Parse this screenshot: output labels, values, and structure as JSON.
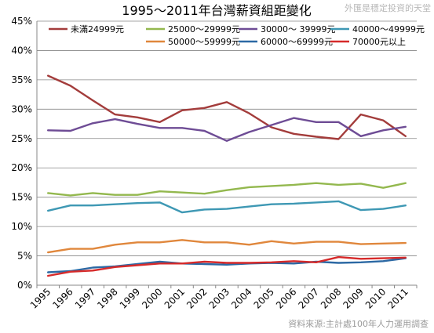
{
  "header": {
    "title": "1995～2011年台灣薪資組距變化",
    "watermark": "外匯是穩定投資的天堂"
  },
  "footer": {
    "source": "資料來源:主計處100年人力運用調查"
  },
  "chart_data": {
    "type": "line",
    "x": [
      "1995",
      "1996",
      "1997",
      "1998",
      "1999",
      "2000",
      "2001",
      "2002",
      "2003",
      "2004",
      "2005",
      "2006",
      "2007",
      "2008",
      "2009",
      "2010",
      "2011"
    ],
    "ylim": [
      0,
      45
    ],
    "yticks": [
      0,
      5,
      10,
      15,
      20,
      25,
      30,
      35,
      40,
      45
    ],
    "ytick_labels": [
      "0%",
      "5%",
      "10%",
      "15%",
      "20%",
      "25%",
      "30%",
      "35%",
      "40%",
      "45%"
    ],
    "grid": true,
    "legend_position": "top",
    "series": [
      {
        "name": "未滿24999元",
        "color": "#a33c3b",
        "values": [
          35.7,
          34.0,
          31.5,
          29.1,
          28.6,
          27.8,
          29.8,
          30.2,
          31.2,
          29.3,
          26.9,
          25.8,
          25.3,
          24.9,
          29.1,
          28.1,
          25.4
        ]
      },
      {
        "name": "25000～29999元",
        "color": "#93b84e",
        "values": [
          15.7,
          15.3,
          15.7,
          15.4,
          15.4,
          16.0,
          15.8,
          15.6,
          16.2,
          16.7,
          16.9,
          17.1,
          17.4,
          17.1,
          17.3,
          16.6,
          17.4
        ]
      },
      {
        "name": "30000～ 39999元",
        "color": "#6e4c95",
        "values": [
          26.4,
          26.3,
          27.6,
          28.3,
          27.5,
          26.8,
          26.8,
          26.3,
          24.6,
          26.1,
          27.3,
          28.5,
          27.8,
          27.8,
          25.4,
          26.4,
          27.0
        ]
      },
      {
        "name": "40000～49999元",
        "color": "#3e98b4",
        "values": [
          12.7,
          13.6,
          13.6,
          13.8,
          14.0,
          14.1,
          12.4,
          12.9,
          13.0,
          13.4,
          13.8,
          13.9,
          14.1,
          14.3,
          12.8,
          13.0,
          13.6
        ]
      },
      {
        "name": "50000～59999元",
        "color": "#e0873c",
        "values": [
          5.6,
          6.2,
          6.2,
          6.9,
          7.3,
          7.3,
          7.7,
          7.3,
          7.3,
          6.9,
          7.5,
          7.1,
          7.4,
          7.4,
          7.0,
          7.1,
          7.2
        ]
      },
      {
        "name": "60000～69999元",
        "color": "#2c69a4",
        "values": [
          2.2,
          2.4,
          3.0,
          3.2,
          3.6,
          4.0,
          3.7,
          3.6,
          3.5,
          3.7,
          3.8,
          3.7,
          4.0,
          3.8,
          3.9,
          4.1,
          4.6
        ]
      },
      {
        "name": "70000元以上",
        "color": "#d62a2a",
        "values": [
          1.6,
          2.3,
          2.5,
          3.1,
          3.4,
          3.7,
          3.7,
          4.0,
          3.8,
          3.8,
          3.9,
          4.1,
          3.9,
          4.8,
          4.5,
          4.6,
          4.7
        ]
      }
    ]
  }
}
